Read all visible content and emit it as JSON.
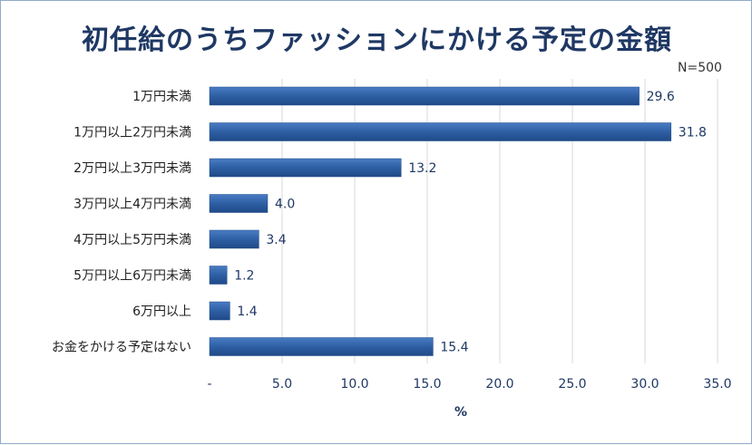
{
  "chart_data": {
    "type": "bar",
    "orientation": "horizontal",
    "title": "初任給のうちファッションにかける予定の金額",
    "note": "N=500",
    "xlabel": "%",
    "ylabel": "",
    "xlim": [
      0,
      35
    ],
    "grid": true,
    "categories": [
      "1万円未満",
      "1万円以上2万円未満",
      "2万円以上3万円未満",
      "3万円以上4万円未満",
      "4万円以上5万円未満",
      "5万円以上6万円未満",
      "6万円以上",
      "お金をかける予定はない"
    ],
    "values": [
      29.6,
      31.8,
      13.2,
      4.0,
      3.4,
      1.2,
      1.4,
      15.4
    ],
    "value_labels": [
      "29.6",
      "31.8",
      "13.2",
      "4.0",
      "3.4",
      "1.2",
      "1.4",
      "15.4"
    ],
    "ticks": [
      0,
      5,
      10,
      15,
      20,
      25,
      30,
      35
    ],
    "tick_labels": [
      "-",
      "5.0",
      "10.0",
      "15.0",
      "20.0",
      "25.0",
      "30.0",
      "35.0"
    ],
    "bar_color": "#2e5fa3"
  }
}
